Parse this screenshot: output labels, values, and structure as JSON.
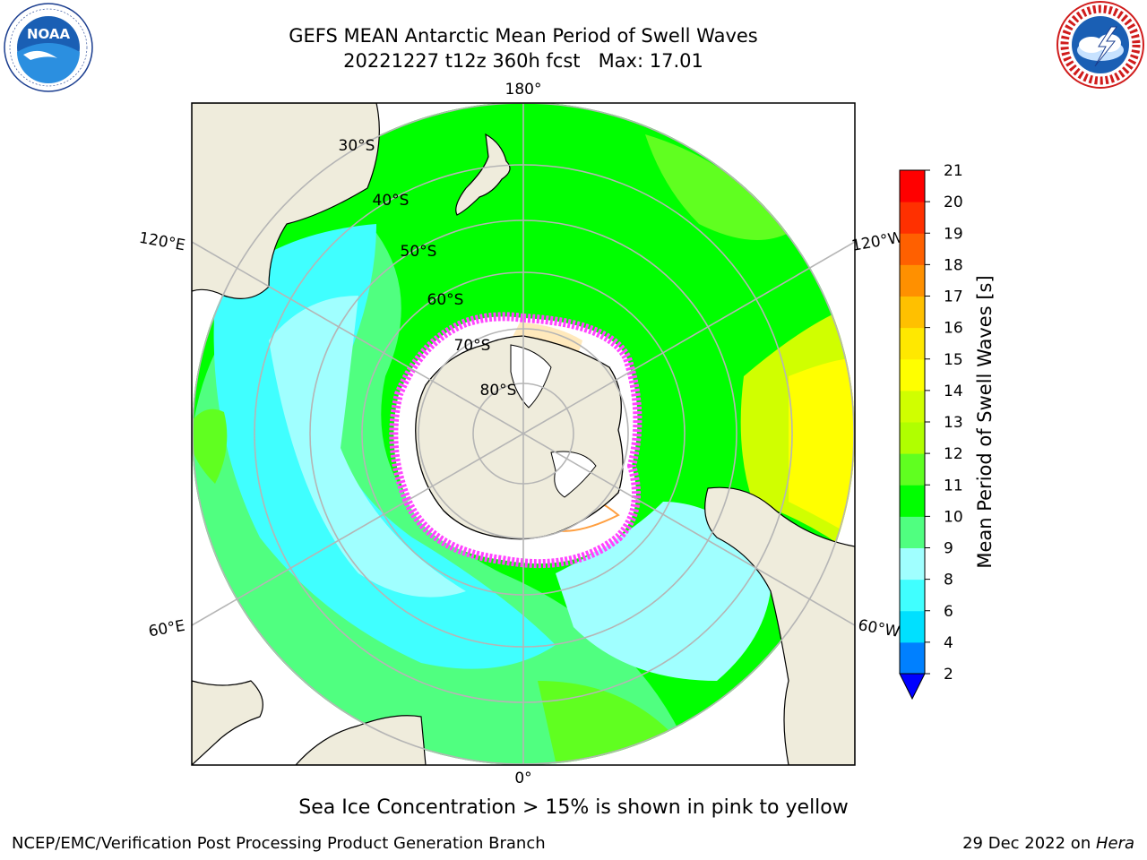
{
  "title": {
    "line1": "GEFS MEAN Antarctic Mean Period of Swell Waves",
    "line2": "20221227 t12z 360h fcst   Max: 17.01"
  },
  "caption": "Sea Ice Concentration > 15% is shown in pink to yellow",
  "footer": {
    "left": "NCEP/EMC/Verification Post Processing Product Generation Branch",
    "date": "29 Dec 2022 on ",
    "machine": "Hera"
  },
  "logos": {
    "noaa": {
      "icon": "noaa-logo-icon",
      "text": "NOAA"
    },
    "nws": {
      "icon": "nws-logo-icon"
    }
  },
  "map": {
    "projection": "south-polar-stereographic",
    "longitude_labels": [
      "180°",
      "120°E",
      "120°W",
      "60°E",
      "60°W",
      "0°"
    ],
    "latitude_labels": [
      "30°S",
      "40°S",
      "50°S",
      "60°S",
      "70°S",
      "80°S"
    ],
    "colors": {
      "land": "#efecdc",
      "ice_shelf": "#ffffff",
      "grid": "#b5b5b5",
      "coast": "#000000",
      "sea_ice_edge": "#ff44ff"
    }
  },
  "colorbar": {
    "label": "Mean Period of Swell Waves [s]",
    "ticks": [
      "21",
      "20",
      "19",
      "18",
      "17",
      "16",
      "15",
      "14",
      "13",
      "12",
      "11",
      "10",
      "9",
      "8",
      "6",
      "4",
      "2"
    ],
    "bins": [
      {
        "from": 2,
        "to": 4,
        "color": "#0080ff"
      },
      {
        "from": 4,
        "to": 6,
        "color": "#00e0ff"
      },
      {
        "from": 6,
        "to": 8,
        "color": "#40ffff"
      },
      {
        "from": 8,
        "to": 9,
        "color": "#a0ffff"
      },
      {
        "from": 9,
        "to": 10,
        "color": "#50ff80"
      },
      {
        "from": 10,
        "to": 11,
        "color": "#00ff00"
      },
      {
        "from": 11,
        "to": 12,
        "color": "#60ff20"
      },
      {
        "from": 12,
        "to": 13,
        "color": "#b0ff00"
      },
      {
        "from": 13,
        "to": 14,
        "color": "#d0ff00"
      },
      {
        "from": 14,
        "to": 15,
        "color": "#ffff00"
      },
      {
        "from": 15,
        "to": 16,
        "color": "#ffe800"
      },
      {
        "from": 16,
        "to": 17,
        "color": "#ffc000"
      },
      {
        "from": 17,
        "to": 18,
        "color": "#ff9000"
      },
      {
        "from": 18,
        "to": 19,
        "color": "#ff6000"
      },
      {
        "from": 19,
        "to": 20,
        "color": "#ff3000"
      },
      {
        "from": 20,
        "to": 21,
        "color": "#ff0000"
      }
    ],
    "extend_min_color": "#0000ff"
  }
}
